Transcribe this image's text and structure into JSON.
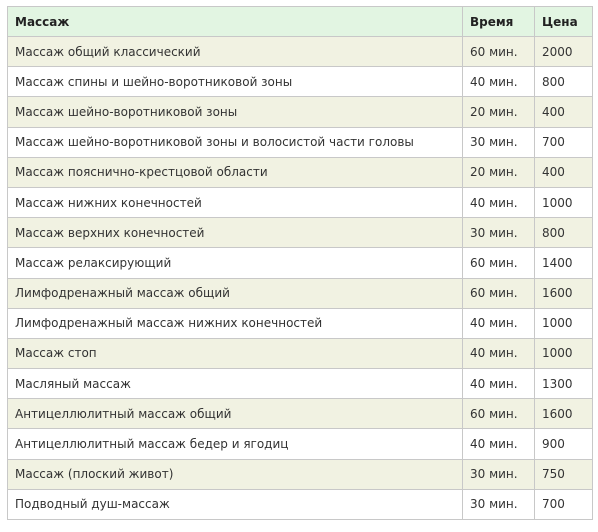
{
  "table": {
    "headers": [
      "Массаж",
      "Время",
      "Цена"
    ],
    "rows": [
      [
        "Массаж общий классический",
        "60 мин.",
        "2000"
      ],
      [
        "Массаж спины и шейно-воротниковой зоны",
        "40 мин.",
        "800"
      ],
      [
        "Массаж шейно-воротниковой зоны",
        "20 мин.",
        "400"
      ],
      [
        "Массаж шейно-воротниковой зоны и волосистой части головы",
        "30 мин.",
        "700"
      ],
      [
        "Массаж пояснично-крестцовой области",
        "20 мин.",
        "400"
      ],
      [
        "Массаж нижних конечностей",
        "40 мин.",
        "1000"
      ],
      [
        "Массаж верхних конечностей",
        "30 мин.",
        "800"
      ],
      [
        "Массаж релаксирующий",
        "60 мин.",
        "1400"
      ],
      [
        "Лимфодренажный массаж общий",
        "60 мин.",
        "1600"
      ],
      [
        "Лимфодренажный массаж нижних конечностей",
        "40 мин.",
        "1000"
      ],
      [
        "Массаж стоп",
        "40 мин.",
        "1000"
      ],
      [
        "Масляный массаж",
        "40 мин.",
        "1300"
      ],
      [
        "Антицеллюлитный массаж общий",
        "60 мин.",
        "1600"
      ],
      [
        "Антицеллюлитный массаж бедер и ягодиц",
        "40 мин.",
        "900"
      ],
      [
        "Массаж (плоский живот)",
        "30 мин.",
        "750"
      ],
      [
        "Подводный душ-массаж",
        "30 мин.",
        "700"
      ]
    ]
  },
  "colors": {
    "header_bg": "#e2f5e2",
    "odd_row_bg": "#f1f2e2",
    "even_row_bg": "#ffffff",
    "border": "#c8c8c8"
  }
}
